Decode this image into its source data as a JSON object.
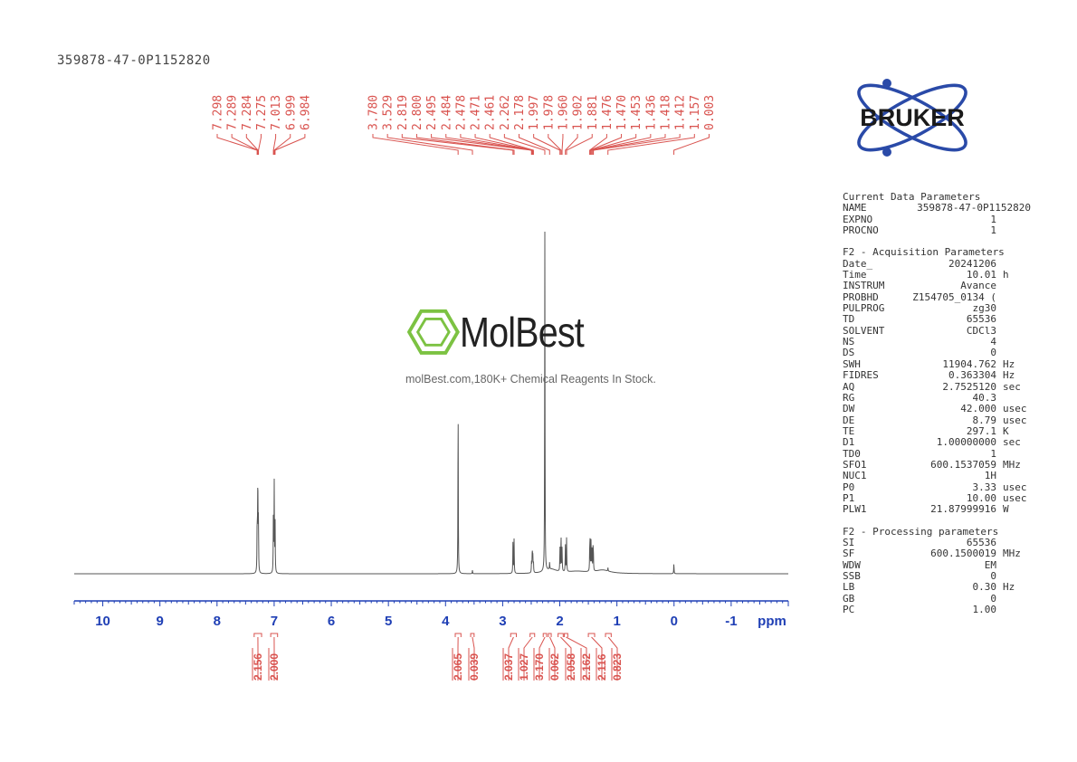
{
  "sample_id": "359878-47-0P1152820",
  "watermark": {
    "brand": "MolBest",
    "tagline": "molBest.com,180K+ Chemical Reagents In Stock."
  },
  "logo": {
    "text": "BRUKER"
  },
  "colors": {
    "peak_labels": "#d9534f",
    "axis": "#1f3fb5",
    "trace": "#555555"
  },
  "chart_data": {
    "type": "line",
    "xlabel": "ppm",
    "xlim": [
      10.5,
      -2.0
    ],
    "x_ticks": [
      10,
      9,
      8,
      7,
      6,
      5,
      4,
      3,
      2,
      1,
      0,
      -1
    ],
    "x_tick_labels": [
      "10",
      "9",
      "8",
      "7",
      "6",
      "5",
      "4",
      "3",
      "2",
      "1",
      "0",
      "-1"
    ],
    "axis_reversed": true,
    "peak_labels_left": [
      "7.298",
      "7.289",
      "7.284",
      "7.275",
      "7.013",
      "6.999",
      "6.984"
    ],
    "peak_labels_right": [
      "3.780",
      "3.529",
      "2.819",
      "2.800",
      "2.495",
      "2.484",
      "2.478",
      "2.471",
      "2.461",
      "2.262",
      "2.178",
      "1.997",
      "1.978",
      "1.960",
      "1.902",
      "1.881",
      "1.476",
      "1.470",
      "1.453",
      "1.436",
      "1.418",
      "1.412",
      "1.157",
      "0.003"
    ],
    "integrals": [
      {
        "label": "2.156",
        "from": 7.35,
        "to": 7.22
      },
      {
        "label": "2.000",
        "from": 7.06,
        "to": 6.94
      },
      {
        "label": "2.065",
        "from": 3.83,
        "to": 3.73
      },
      {
        "label": "0.039",
        "from": 3.56,
        "to": 3.5
      },
      {
        "label": "2.037",
        "from": 2.86,
        "to": 2.76
      },
      {
        "label": "1.027",
        "from": 2.52,
        "to": 2.44
      },
      {
        "label": "3.170",
        "from": 2.29,
        "to": 2.23
      },
      {
        "label": "0.062",
        "from": 2.2,
        "to": 2.15
      },
      {
        "label": "2.058",
        "from": 2.03,
        "to": 1.94
      },
      {
        "label": "2.162",
        "from": 1.92,
        "to": 1.86
      },
      {
        "label": "2.116",
        "from": 1.5,
        "to": 1.39
      },
      {
        "label": "0.823",
        "from": 1.2,
        "to": 1.1
      }
    ],
    "peaks": [
      {
        "ppm": 7.298,
        "h": 0.14
      },
      {
        "ppm": 7.289,
        "h": 0.17
      },
      {
        "ppm": 7.284,
        "h": 0.16
      },
      {
        "ppm": 7.275,
        "h": 0.15
      },
      {
        "ppm": 7.013,
        "h": 0.19
      },
      {
        "ppm": 6.999,
        "h": 0.26
      },
      {
        "ppm": 6.984,
        "h": 0.16
      },
      {
        "ppm": 3.78,
        "h": 0.5
      },
      {
        "ppm": 3.529,
        "h": 0.01
      },
      {
        "ppm": 2.819,
        "h": 0.1
      },
      {
        "ppm": 2.8,
        "h": 0.1
      },
      {
        "ppm": 2.495,
        "h": 0.03
      },
      {
        "ppm": 2.484,
        "h": 0.04
      },
      {
        "ppm": 2.478,
        "h": 0.05
      },
      {
        "ppm": 2.471,
        "h": 0.04
      },
      {
        "ppm": 2.461,
        "h": 0.03
      },
      {
        "ppm": 2.262,
        "h": 1.0
      },
      {
        "ppm": 2.178,
        "h": 0.02
      },
      {
        "ppm": 1.997,
        "h": 0.07
      },
      {
        "ppm": 1.978,
        "h": 0.11
      },
      {
        "ppm": 1.96,
        "h": 0.07
      },
      {
        "ppm": 1.902,
        "h": 0.08
      },
      {
        "ppm": 1.881,
        "h": 0.1
      },
      {
        "ppm": 1.476,
        "h": 0.06
      },
      {
        "ppm": 1.47,
        "h": 0.08
      },
      {
        "ppm": 1.453,
        "h": 0.09
      },
      {
        "ppm": 1.436,
        "h": 0.08
      },
      {
        "ppm": 1.418,
        "h": 0.06
      },
      {
        "ppm": 1.412,
        "h": 0.05
      },
      {
        "ppm": 1.157,
        "h": 0.01
      },
      {
        "ppm": 0.003,
        "h": 0.03
      }
    ]
  },
  "params": {
    "current": {
      "title": "Current Data Parameters",
      "rows": [
        {
          "k": "NAME",
          "v": "359878-47-0P1152820",
          "u": ""
        },
        {
          "k": "EXPNO",
          "v": "1",
          "u": ""
        },
        {
          "k": "PROCNO",
          "v": "1",
          "u": ""
        }
      ]
    },
    "acquisition": {
      "title": "F2 - Acquisition Parameters",
      "rows": [
        {
          "k": "Date_",
          "v": "20241206",
          "u": ""
        },
        {
          "k": "Time",
          "v": "10.01",
          "u": "h"
        },
        {
          "k": "INSTRUM",
          "v": "Avance",
          "u": ""
        },
        {
          "k": "PROBHD",
          "v": "Z154705_0134 (",
          "u": ""
        },
        {
          "k": "PULPROG",
          "v": "zg30",
          "u": ""
        },
        {
          "k": "TD",
          "v": "65536",
          "u": ""
        },
        {
          "k": "SOLVENT",
          "v": "CDCl3",
          "u": ""
        },
        {
          "k": "NS",
          "v": "4",
          "u": ""
        },
        {
          "k": "DS",
          "v": "0",
          "u": ""
        },
        {
          "k": "SWH",
          "v": "11904.762",
          "u": "Hz"
        },
        {
          "k": "FIDRES",
          "v": "0.363304",
          "u": "Hz"
        },
        {
          "k": "AQ",
          "v": "2.7525120",
          "u": "sec"
        },
        {
          "k": "RG",
          "v": "40.3",
          "u": ""
        },
        {
          "k": "DW",
          "v": "42.000",
          "u": "usec"
        },
        {
          "k": "DE",
          "v": "8.79",
          "u": "usec"
        },
        {
          "k": "TE",
          "v": "297.1",
          "u": "K"
        },
        {
          "k": "D1",
          "v": "1.00000000",
          "u": "sec"
        },
        {
          "k": "TD0",
          "v": "1",
          "u": ""
        },
        {
          "k": "SFO1",
          "v": "600.1537059",
          "u": "MHz"
        },
        {
          "k": "NUC1",
          "v": "1H",
          "u": ""
        },
        {
          "k": "P0",
          "v": "3.33",
          "u": "usec"
        },
        {
          "k": "P1",
          "v": "10.00",
          "u": "usec"
        },
        {
          "k": "PLW1",
          "v": "21.87999916",
          "u": "W"
        }
      ]
    },
    "processing": {
      "title": "F2 - Processing parameters",
      "rows": [
        {
          "k": "SI",
          "v": "65536",
          "u": ""
        },
        {
          "k": "SF",
          "v": "600.1500019",
          "u": "MHz"
        },
        {
          "k": "WDW",
          "v": "EM",
          "u": ""
        },
        {
          "k": "SSB",
          "v": "0",
          "u": ""
        },
        {
          "k": "LB",
          "v": "0.30",
          "u": "Hz"
        },
        {
          "k": "GB",
          "v": "0",
          "u": ""
        },
        {
          "k": "PC",
          "v": "1.00",
          "u": ""
        }
      ]
    }
  }
}
